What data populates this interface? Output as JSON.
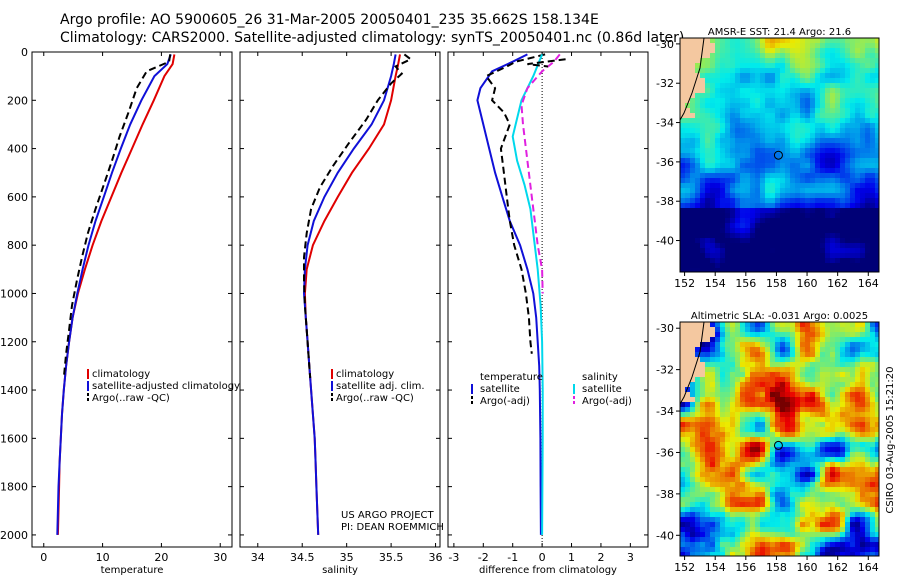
{
  "header": {
    "line1": "Argo profile: AO 5900605_26 31-Mar-2005 20050401_235 35.662S 158.134E",
    "line2": "Climatology: CARS2000. Satellite-adjusted climatology: synTS_20050401.nc (0.86d later)"
  },
  "colors": {
    "red": "#e00000",
    "blue": "#1010d8",
    "black": "#000000",
    "cyan": "#00d8ec",
    "magenta": "#e020e0"
  },
  "chart_data": [
    {
      "type": "line",
      "id": "temperature",
      "xlabel": "temperature",
      "ylabel": "",
      "xlim": [
        -2,
        32
      ],
      "ylim": [
        0,
        2050
      ],
      "y_reversed": true,
      "xticks": [
        "0",
        "10",
        "20",
        "30"
      ],
      "xtick_values": [
        0,
        10,
        20,
        30
      ],
      "yticks": [
        "0",
        "200",
        "400",
        "600",
        "800",
        "1000",
        "1200",
        "1400",
        "1600",
        "1800",
        "2000"
      ],
      "ytick_values": [
        0,
        200,
        400,
        600,
        800,
        1000,
        1200,
        1400,
        1600,
        1800,
        2000
      ],
      "legend": [
        "climatology",
        "satellite-adjusted climatology",
        "Argo(..raw -QC)"
      ],
      "series": [
        {
          "name": "climatology",
          "color": "red",
          "dash": false,
          "points": [
            [
              22.2,
              10
            ],
            [
              21.9,
              50
            ],
            [
              20.5,
              100
            ],
            [
              18.7,
              200
            ],
            [
              16.8,
              300
            ],
            [
              15.0,
              400
            ],
            [
              13.2,
              500
            ],
            [
              11.5,
              600
            ],
            [
              9.8,
              700
            ],
            [
              8.3,
              800
            ],
            [
              7.0,
              900
            ],
            [
              5.8,
              1000
            ],
            [
              4.9,
              1100
            ],
            [
              4.3,
              1200
            ],
            [
              3.8,
              1300
            ],
            [
              3.4,
              1400
            ],
            [
              3.1,
              1500
            ],
            [
              2.9,
              1600
            ],
            [
              2.7,
              1700
            ],
            [
              2.6,
              1800
            ],
            [
              2.5,
              1900
            ],
            [
              2.4,
              2000
            ]
          ]
        },
        {
          "name": "satellite-adjusted climatology",
          "color": "blue",
          "dash": false,
          "points": [
            [
              21.6,
              10
            ],
            [
              21.0,
              50
            ],
            [
              18.8,
              100
            ],
            [
              16.6,
              200
            ],
            [
              14.7,
              300
            ],
            [
              13.1,
              400
            ],
            [
              11.6,
              500
            ],
            [
              10.2,
              600
            ],
            [
              8.8,
              700
            ],
            [
              7.6,
              800
            ],
            [
              6.6,
              900
            ],
            [
              5.7,
              1000
            ],
            [
              4.9,
              1100
            ],
            [
              4.3,
              1200
            ],
            [
              3.8,
              1300
            ],
            [
              3.4,
              1400
            ],
            [
              3.1,
              1500
            ],
            [
              2.9,
              1600
            ],
            [
              2.7,
              1700
            ],
            [
              2.5,
              1800
            ],
            [
              2.4,
              1900
            ],
            [
              2.3,
              2000
            ]
          ]
        },
        {
          "name": "Argo(..raw -QC)",
          "color": "black",
          "dash": true,
          "points": [
            [
              21.5,
              10
            ],
            [
              21.3,
              40
            ],
            [
              17.5,
              80
            ],
            [
              15.8,
              150
            ],
            [
              14.4,
              250
            ],
            [
              12.9,
              350
            ],
            [
              11.6,
              450
            ],
            [
              10.2,
              550
            ],
            [
              8.8,
              650
            ],
            [
              7.5,
              750
            ],
            [
              6.5,
              850
            ],
            [
              5.6,
              950
            ],
            [
              4.8,
              1050
            ],
            [
              4.3,
              1150
            ],
            [
              3.8,
              1250
            ],
            [
              3.4,
              1350
            ]
          ]
        }
      ]
    },
    {
      "type": "line",
      "id": "salinity",
      "xlabel": "salinity",
      "xlim": [
        33.8,
        36.05
      ],
      "ylim": [
        0,
        2050
      ],
      "y_reversed": true,
      "xticks": [
        "34",
        "34.5",
        "35",
        "35.5",
        "36"
      ],
      "xtick_values": [
        34,
        34.5,
        35,
        35.5,
        36
      ],
      "legend": [
        "climatology",
        "satellite adj. clim.",
        "Argo(..raw -QC)"
      ],
      "annotation": [
        "US ARGO PROJECT",
        "PI: DEAN ROEMMICH"
      ],
      "series": [
        {
          "name": "climatology",
          "color": "red",
          "dash": false,
          "points": [
            [
              35.6,
              10
            ],
            [
              35.58,
              50
            ],
            [
              35.55,
              100
            ],
            [
              35.5,
              200
            ],
            [
              35.42,
              300
            ],
            [
              35.25,
              400
            ],
            [
              35.06,
              500
            ],
            [
              34.9,
              600
            ],
            [
              34.75,
              700
            ],
            [
              34.62,
              800
            ],
            [
              34.55,
              900
            ],
            [
              34.53,
              1000
            ],
            [
              34.54,
              1100
            ],
            [
              34.56,
              1200
            ],
            [
              34.58,
              1300
            ],
            [
              34.6,
              1400
            ],
            [
              34.62,
              1500
            ],
            [
              34.64,
              1600
            ],
            [
              34.65,
              1700
            ],
            [
              34.66,
              1800
            ],
            [
              34.67,
              1900
            ],
            [
              34.68,
              2000
            ]
          ]
        },
        {
          "name": "satellite adj. clim.",
          "color": "blue",
          "dash": false,
          "points": [
            [
              35.55,
              10
            ],
            [
              35.53,
              50
            ],
            [
              35.5,
              100
            ],
            [
              35.42,
              200
            ],
            [
              35.28,
              300
            ],
            [
              35.08,
              400
            ],
            [
              34.9,
              500
            ],
            [
              34.75,
              600
            ],
            [
              34.63,
              700
            ],
            [
              34.56,
              800
            ],
            [
              34.53,
              900
            ],
            [
              34.52,
              1000
            ],
            [
              34.54,
              1100
            ],
            [
              34.56,
              1200
            ],
            [
              34.58,
              1300
            ],
            [
              34.6,
              1400
            ],
            [
              34.62,
              1500
            ],
            [
              34.64,
              1600
            ],
            [
              34.65,
              1700
            ],
            [
              34.66,
              1800
            ],
            [
              34.67,
              1900
            ],
            [
              34.68,
              2000
            ]
          ]
        },
        {
          "name": "Argo(..raw -QC)",
          "color": "black",
          "dash": true,
          "points": [
            [
              35.65,
              10
            ],
            [
              35.72,
              30
            ],
            [
              35.55,
              60
            ],
            [
              35.62,
              90
            ],
            [
              35.5,
              130
            ],
            [
              35.35,
              200
            ],
            [
              35.22,
              280
            ],
            [
              35.02,
              380
            ],
            [
              34.85,
              470
            ],
            [
              34.7,
              560
            ],
            [
              34.6,
              650
            ],
            [
              34.55,
              750
            ],
            [
              34.52,
              850
            ],
            [
              34.52,
              950
            ],
            [
              34.53,
              1050
            ],
            [
              34.55,
              1150
            ],
            [
              34.57,
              1250
            ],
            [
              34.59,
              1350
            ]
          ]
        }
      ]
    },
    {
      "type": "line",
      "id": "difference",
      "xlabel": "difference from climatology",
      "xlim": [
        -3.2,
        3.6
      ],
      "ylim": [
        0,
        2050
      ],
      "y_reversed": true,
      "xticks": [
        "-3",
        "-2",
        "-1",
        "0",
        "1",
        "2",
        "3"
      ],
      "xtick_values": [
        -3,
        -2,
        -1,
        0,
        1,
        2,
        3
      ],
      "zero_line": 0,
      "legend_left": [
        "temperature",
        "satellite",
        "Argo(-adj)"
      ],
      "legend_right": [
        "salinity",
        "satellite",
        "Argo(-adj)"
      ],
      "series": [
        {
          "name": "temperature satellite",
          "color": "blue",
          "dash": false,
          "points": [
            [
              -0.5,
              10
            ],
            [
              -1.0,
              40
            ],
            [
              -1.7,
              80
            ],
            [
              -2.1,
              150
            ],
            [
              -2.2,
              200
            ],
            [
              -2.0,
              300
            ],
            [
              -1.8,
              400
            ],
            [
              -1.6,
              500
            ],
            [
              -1.35,
              600
            ],
            [
              -1.1,
              700
            ],
            [
              -0.75,
              800
            ],
            [
              -0.5,
              900
            ],
            [
              -0.3,
              1000
            ],
            [
              -0.2,
              1100
            ],
            [
              -0.15,
              1200
            ],
            [
              -0.1,
              1300
            ],
            [
              -0.08,
              1400
            ],
            [
              -0.06,
              1600
            ],
            [
              -0.05,
              1800
            ],
            [
              -0.04,
              2000
            ]
          ]
        },
        {
          "name": "temperature Argo(-adj)",
          "color": "black",
          "dash": true,
          "points": [
            [
              0.1,
              10
            ],
            [
              -0.9,
              40
            ],
            [
              -1.2,
              60
            ],
            [
              -1.9,
              100
            ],
            [
              -1.6,
              150
            ],
            [
              -1.7,
              200
            ],
            [
              -1.3,
              250
            ],
            [
              -1.1,
              300
            ],
            [
              -1.4,
              400
            ],
            [
              -1.3,
              500
            ],
            [
              -1.2,
              600
            ],
            [
              -1.1,
              700
            ],
            [
              -0.95,
              800
            ],
            [
              -0.7,
              900
            ],
            [
              -0.55,
              1000
            ],
            [
              -0.45,
              1100
            ],
            [
              -0.4,
              1200
            ],
            [
              -0.35,
              1250
            ]
          ]
        },
        {
          "name": "salinity satellite",
          "color": "cyan",
          "dash": false,
          "points": [
            [
              0.0,
              10
            ],
            [
              -0.3,
              100
            ],
            [
              -0.7,
              200
            ],
            [
              -1.0,
              350
            ],
            [
              -0.85,
              450
            ],
            [
              -0.6,
              550
            ],
            [
              -0.4,
              650
            ],
            [
              -0.3,
              750
            ],
            [
              -0.15,
              900
            ],
            [
              -0.05,
              1050
            ],
            [
              0.0,
              1200
            ],
            [
              0.02,
              1400
            ],
            [
              0.02,
              1600
            ],
            [
              0.01,
              1800
            ],
            [
              0.0,
              2000
            ]
          ]
        },
        {
          "name": "salinity Argo(-adj)",
          "color": "magenta",
          "dash": true,
          "points": [
            [
              0.6,
              10
            ],
            [
              0.4,
              40
            ],
            [
              0.0,
              80
            ],
            [
              -0.5,
              150
            ],
            [
              -0.7,
              220
            ],
            [
              -0.65,
              300
            ],
            [
              -0.5,
              450
            ],
            [
              -0.35,
              600
            ],
            [
              -0.25,
              700
            ],
            [
              -0.15,
              800
            ],
            [
              0.0,
              900
            ],
            [
              0.02,
              1000
            ]
          ]
        },
        {
          "name": "black near-surface",
          "color": "black",
          "dash": true,
          "points": [
            [
              0.8,
              30
            ],
            [
              -0.5,
              50
            ],
            [
              0.2,
              60
            ]
          ]
        }
      ]
    }
  ],
  "maps": [
    {
      "id": "sst",
      "title": "AMSR-E SST: 21.4 Argo: 21.6",
      "lon_ticks": [
        "152",
        "154",
        "156",
        "158",
        "160",
        "162",
        "164"
      ],
      "lat_ticks": [
        "-30",
        "-32",
        "-34",
        "-36",
        "-38",
        "-40"
      ],
      "lon_range": [
        151.7,
        164.7
      ],
      "lat_range": [
        -29.7,
        -41.6
      ],
      "marker_lon": 158.13,
      "marker_lat": -35.66
    },
    {
      "id": "sla",
      "title": "Altimetric SLA: -0.031 Argo: 0.0025",
      "lon_ticks": [
        "152",
        "154",
        "156",
        "158",
        "160",
        "162",
        "164"
      ],
      "lat_ticks": [
        "-30",
        "-32",
        "-34",
        "-36",
        "-38",
        "-40"
      ],
      "lon_range": [
        151.7,
        164.7
      ],
      "lat_range": [
        -29.7,
        -41.0
      ],
      "marker_lon": 158.13,
      "marker_lat": -35.66
    }
  ],
  "side_label": "CSIRO 03-Aug-2005 15:21:20"
}
